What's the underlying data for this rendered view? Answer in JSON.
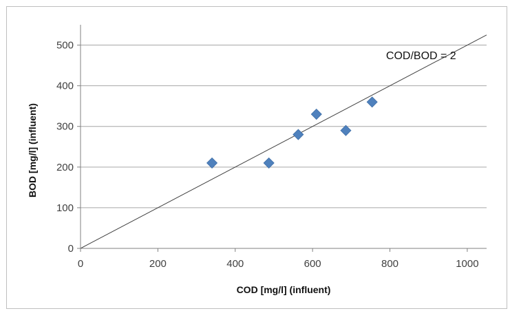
{
  "chart_data": {
    "type": "scatter",
    "title": "",
    "xlabel": "COD  [mg/l] (influent)",
    "ylabel": "BOD  [mg/l] (influent)",
    "xlim": [
      0,
      1050
    ],
    "ylim": [
      0,
      550
    ],
    "xticks": [
      0,
      200,
      400,
      600,
      800,
      1000
    ],
    "yticks": [
      0,
      100,
      200,
      300,
      400,
      500
    ],
    "grid": "horizontal",
    "legend": "none",
    "series": [
      {
        "x": [
          340,
          487,
          563,
          610,
          686,
          754
        ],
        "y": [
          210,
          210,
          280,
          330,
          290,
          360
        ],
        "marker": "diamond",
        "color": "#4f81bd"
      }
    ],
    "reference_line": {
      "slope": 0.5,
      "intercept": 0,
      "color": "#404040"
    },
    "annotations": [
      {
        "text": "COD/BOD = 2",
        "x": 790,
        "y": 465
      }
    ]
  }
}
